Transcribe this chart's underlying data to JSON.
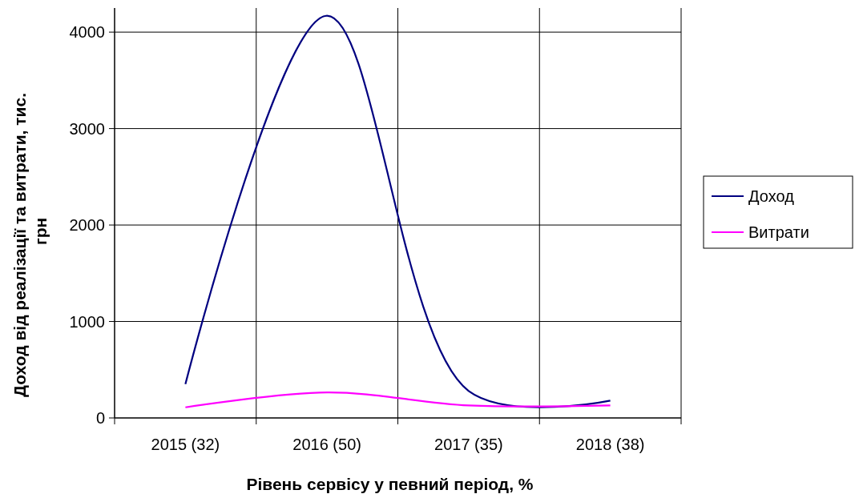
{
  "chart_data": {
    "type": "line",
    "xlabel": "Рівень сервісу у певний період, %",
    "ylabel": "Доход  від  реалізації  та  витрати,  тис. грн",
    "categories": [
      "2015 (32)",
      "2016 (50)",
      "2017 (35)",
      "2018 (38)"
    ],
    "series": [
      {
        "name": "Доход",
        "color": "#000080",
        "values": [
          350,
          4170,
          280,
          180
        ]
      },
      {
        "name": "Витрати",
        "color": "#ff00ff",
        "values": [
          110,
          265,
          130,
          130
        ]
      }
    ],
    "ylim": [
      0,
      4250
    ],
    "yticks": [
      0,
      1000,
      2000,
      3000,
      4000
    ],
    "grid": true,
    "legend": "right",
    "marker": "none",
    "line_style": "solid"
  }
}
